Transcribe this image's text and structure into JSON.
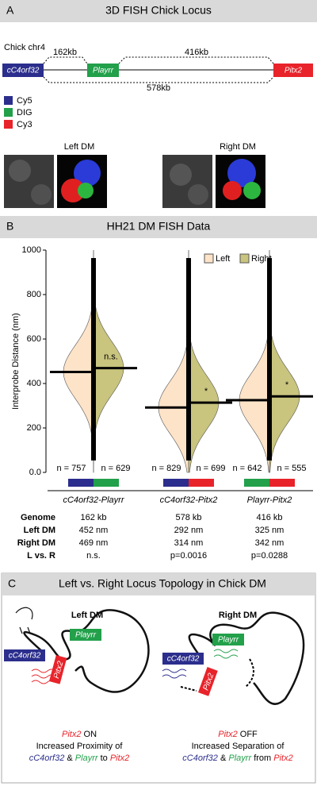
{
  "panel_a": {
    "letter": "A",
    "title": "3D FISH Chick Locus",
    "chromosome": "Chick chr4",
    "genes": [
      "cC4orf32",
      "Playrr",
      "Pitx2"
    ],
    "distances": [
      "162kb",
      "416kb",
      "578kb"
    ],
    "channels": [
      "Cy5",
      "DIG",
      "Cy3"
    ],
    "image_labels": [
      "Left DM",
      "Right DM"
    ]
  },
  "panel_b": {
    "letter": "B",
    "title": "HH21 DM FISH Data",
    "chart_data": {
      "type": "bean",
      "ylabel": "Interprobe Distance (nm)",
      "ylim": [
        0,
        1000
      ],
      "yticks": [
        {
          "value": 0,
          "label": "0.0"
        },
        200,
        400,
        600,
        800,
        1000
      ],
      "categories": [
        "cC4orf32-Playrr",
        "cC4orf32-Pitx2",
        "Playrr-Pitx2"
      ],
      "series": [
        {
          "name": "Left",
          "color": "#fde3c8",
          "values": [
            452,
            292,
            325
          ],
          "n_labels": [
            "n = 757",
            "n = 829",
            "n = 642"
          ]
        },
        {
          "name": "Right",
          "color": "#c9c47e",
          "values": [
            469,
            314,
            342
          ],
          "n_labels": [
            "n = 629",
            "n = 699",
            "n = 555"
          ]
        }
      ],
      "annotations": [
        "n.s.",
        "*",
        "*"
      ]
    },
    "table": {
      "row_labels": [
        "Genome",
        "Left DM",
        "Right DM",
        "L vs. R"
      ],
      "rows": [
        [
          "162 kb",
          "578 kb",
          "416 kb"
        ],
        [
          "452 nm",
          "292 nm",
          "325 nm"
        ],
        [
          "469 nm",
          "314 nm",
          "342 nm"
        ],
        [
          "n.s.",
          "p=0.0016",
          "p=0.0288"
        ]
      ]
    }
  },
  "panel_c": {
    "letter": "C",
    "title": "Left vs. Right Locus Topology in Chick DM",
    "states": [
      "Left DM",
      "Right DM"
    ],
    "left_caption": [
      "ON",
      "Increased Proximity of",
      "&",
      "to"
    ],
    "right_caption": [
      "OFF",
      "Increased Separation of",
      "&",
      "from"
    ]
  }
}
